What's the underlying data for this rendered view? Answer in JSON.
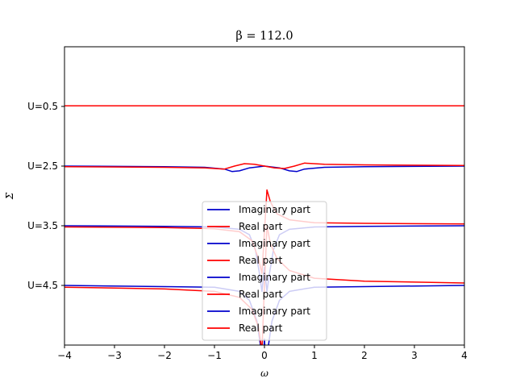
{
  "chart_data": {
    "type": "line",
    "title": "β = 112.0",
    "xlabel": "ω",
    "ylabel": "Σ",
    "xlim": [
      -4,
      4
    ],
    "ylim": [
      -5.5,
      -0.5
    ],
    "x_ticks": [
      -4,
      -3,
      -2,
      -1,
      0,
      1,
      2,
      3,
      4
    ],
    "y_ticks": [
      {
        "value": -1.5,
        "label": "U=0.5"
      },
      {
        "value": -2.5,
        "label": "U=2.5"
      },
      {
        "value": -3.5,
        "label": "U=3.5"
      },
      {
        "value": -4.5,
        "label": "U=4.5"
      }
    ],
    "grid": false,
    "legend_placement": "lower center",
    "colors": {
      "imaginary": "#0000cc",
      "real": "#ff0000"
    },
    "series": [
      {
        "name": "Imaginary part",
        "color": "#0000cc",
        "x": [
          -4,
          -3,
          -2,
          -1,
          0,
          1,
          2,
          3,
          4
        ],
        "y": [
          -1.49,
          -1.49,
          -1.49,
          -1.49,
          -1.49,
          -1.49,
          -1.49,
          -1.49,
          -1.49
        ]
      },
      {
        "name": "Real part",
        "color": "#ff0000",
        "x": [
          -4,
          -3,
          -2,
          -1,
          0,
          1,
          2,
          3,
          4
        ],
        "y": [
          -1.49,
          -1.49,
          -1.49,
          -1.49,
          -1.49,
          -1.49,
          -1.49,
          -1.49,
          -1.49
        ]
      },
      {
        "name": "Imaginary part",
        "color": "#0000cc",
        "x": [
          -4,
          -2,
          -1.2,
          -0.8,
          -0.65,
          -0.5,
          -0.3,
          0,
          0.3,
          0.5,
          0.65,
          0.8,
          1.2,
          2,
          4
        ],
        "y": [
          -2.5,
          -2.51,
          -2.52,
          -2.55,
          -2.59,
          -2.58,
          -2.53,
          -2.5,
          -2.53,
          -2.58,
          -2.59,
          -2.55,
          -2.52,
          -2.51,
          -2.5
        ]
      },
      {
        "name": "Real part",
        "color": "#ff0000",
        "x": [
          -4,
          -2,
          -1.2,
          -0.8,
          -0.6,
          -0.4,
          -0.2,
          0,
          0.2,
          0.4,
          0.6,
          0.8,
          1.2,
          2,
          4
        ],
        "y": [
          -2.51,
          -2.52,
          -2.53,
          -2.55,
          -2.5,
          -2.46,
          -2.47,
          -2.5,
          -2.53,
          -2.54,
          -2.5,
          -2.45,
          -2.47,
          -2.48,
          -2.49
        ]
      },
      {
        "name": "Imaginary part",
        "color": "#0000cc",
        "x": [
          -4,
          -2,
          -1.0,
          -0.5,
          -0.3,
          -0.18,
          -0.1,
          -0.05,
          0,
          0.05,
          0.1,
          0.18,
          0.3,
          0.5,
          1.0,
          2,
          4
        ],
        "y": [
          -3.5,
          -3.51,
          -3.52,
          -3.56,
          -3.65,
          -3.9,
          -4.3,
          -4.6,
          -4.2,
          -4.6,
          -4.3,
          -3.9,
          -3.65,
          -3.56,
          -3.52,
          -3.51,
          -3.5
        ]
      },
      {
        "name": "Real part",
        "color": "#ff0000",
        "x": [
          -4,
          -2,
          -1.0,
          -0.5,
          -0.25,
          -0.12,
          -0.05,
          0,
          0.05,
          0.12,
          0.25,
          0.5,
          1.0,
          2,
          4
        ],
        "y": [
          -3.52,
          -3.53,
          -3.55,
          -3.6,
          -3.75,
          -4.05,
          -4.3,
          -3.6,
          -2.9,
          -3.1,
          -3.3,
          -3.4,
          -3.45,
          -3.46,
          -3.47
        ]
      },
      {
        "name": "Imaginary part",
        "color": "#0000cc",
        "x": [
          -4,
          -2,
          -1.0,
          -0.5,
          -0.3,
          -0.15,
          -0.08,
          -0.03,
          0,
          0.03,
          0.08,
          0.15,
          0.3,
          0.5,
          1.0,
          2,
          4
        ],
        "y": [
          -4.5,
          -4.52,
          -4.53,
          -4.6,
          -4.75,
          -5.1,
          -5.5,
          -5.8,
          -5.4,
          -5.8,
          -5.5,
          -5.1,
          -4.75,
          -4.6,
          -4.53,
          -4.52,
          -4.5
        ]
      },
      {
        "name": "Real part",
        "color": "#ff0000",
        "x": [
          -4,
          -2,
          -1.0,
          -0.5,
          -0.25,
          -0.12,
          -0.05,
          0,
          0.05,
          0.12,
          0.25,
          0.5,
          1.0,
          2,
          4
        ],
        "y": [
          -4.53,
          -4.56,
          -4.6,
          -4.7,
          -4.9,
          -5.2,
          -5.6,
          -4.5,
          -3.5,
          -3.8,
          -4.05,
          -4.25,
          -4.38,
          -4.43,
          -4.46
        ]
      }
    ]
  }
}
